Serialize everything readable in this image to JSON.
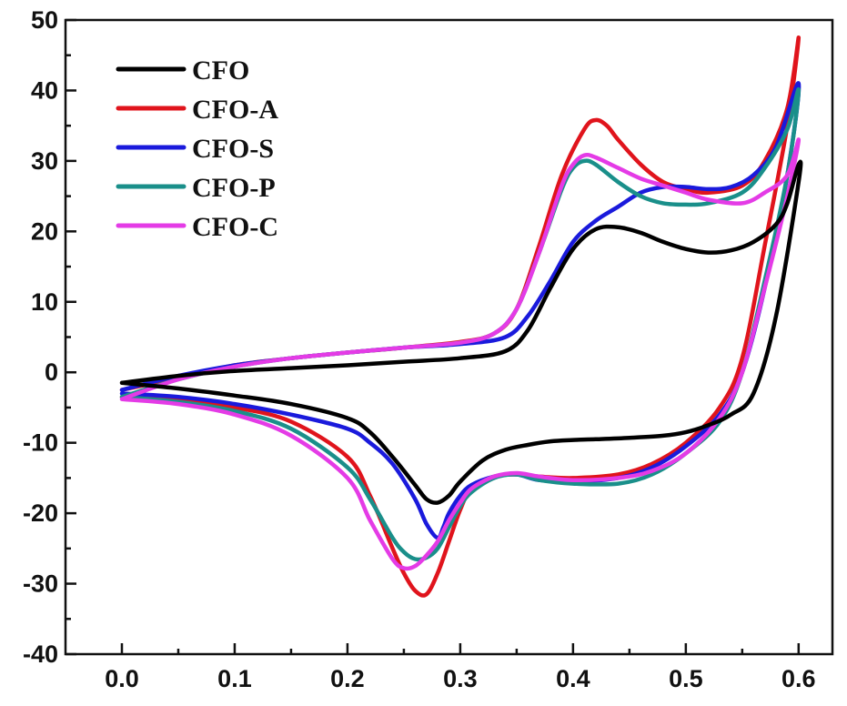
{
  "chart_data": {
    "type": "line",
    "title": "",
    "xlabel": "",
    "ylabel": "",
    "xlim": [
      -0.05,
      0.63
    ],
    "ylim": [
      -40,
      50
    ],
    "xticks": [
      0.0,
      0.1,
      0.2,
      0.3,
      0.4,
      0.5,
      0.6
    ],
    "xtick_labels": [
      "0.0",
      "0.1",
      "0.2",
      "0.3",
      "0.4",
      "0.5",
      "0.6"
    ],
    "yticks": [
      -40,
      -30,
      -20,
      -10,
      0,
      10,
      20,
      30,
      40,
      50
    ],
    "ytick_labels": [
      "-40",
      "-30",
      "-20",
      "-10",
      "0",
      "10",
      "20",
      "30",
      "40",
      "50"
    ],
    "grid": false,
    "legend_position": "top-left",
    "series": [
      {
        "name": "CFO",
        "color": "#000000",
        "x": [
          0.0,
          0.05,
          0.1,
          0.15,
          0.2,
          0.25,
          0.3,
          0.34,
          0.36,
          0.38,
          0.4,
          0.42,
          0.44,
          0.46,
          0.48,
          0.5,
          0.52,
          0.54,
          0.56,
          0.58,
          0.59,
          0.6,
          0.6,
          0.58,
          0.56,
          0.54,
          0.52,
          0.5,
          0.48,
          0.45,
          0.42,
          0.4,
          0.38,
          0.36,
          0.34,
          0.32,
          0.3,
          0.29,
          0.28,
          0.27,
          0.26,
          0.24,
          0.22,
          0.2,
          0.15,
          0.1,
          0.05,
          0.0
        ],
        "y": [
          -1.5,
          -0.5,
          0.2,
          0.6,
          1.0,
          1.5,
          2.0,
          3.0,
          6.0,
          12.0,
          17.5,
          20.3,
          20.6,
          19.8,
          18.5,
          17.5,
          17.0,
          17.3,
          18.5,
          21.0,
          24.0,
          29.5,
          27.0,
          8.0,
          -3.0,
          -6.0,
          -7.5,
          -8.5,
          -9.0,
          -9.3,
          -9.5,
          -9.6,
          -9.8,
          -10.3,
          -11.0,
          -12.5,
          -15.5,
          -17.5,
          -18.5,
          -18.0,
          -16.0,
          -12.0,
          -8.5,
          -6.5,
          -4.5,
          -3.3,
          -2.3,
          -1.5
        ]
      },
      {
        "name": "CFO-A",
        "color": "#e0141c",
        "x": [
          0.0,
          0.05,
          0.1,
          0.15,
          0.2,
          0.25,
          0.3,
          0.33,
          0.35,
          0.37,
          0.39,
          0.41,
          0.42,
          0.43,
          0.44,
          0.46,
          0.48,
          0.5,
          0.52,
          0.55,
          0.57,
          0.59,
          0.6,
          0.59,
          0.57,
          0.55,
          0.53,
          0.5,
          0.47,
          0.44,
          0.4,
          0.37,
          0.35,
          0.33,
          0.31,
          0.3,
          0.29,
          0.28,
          0.27,
          0.26,
          0.25,
          0.24,
          0.22,
          0.2,
          0.15,
          0.1,
          0.05,
          0.0
        ],
        "y": [
          -2.5,
          -0.8,
          1.0,
          2.0,
          2.8,
          3.5,
          4.3,
          5.5,
          9.0,
          18.0,
          28.0,
          34.5,
          35.8,
          35.0,
          33.0,
          29.5,
          27.0,
          26.0,
          25.5,
          26.5,
          30.0,
          37.5,
          47.5,
          35.0,
          18.0,
          2.0,
          -5.0,
          -10.0,
          -13.0,
          -14.5,
          -15.0,
          -14.8,
          -14.5,
          -14.8,
          -16.5,
          -19.5,
          -24.0,
          -28.5,
          -31.5,
          -31.0,
          -28.5,
          -25.0,
          -17.5,
          -12.0,
          -7.0,
          -5.0,
          -4.0,
          -3.5
        ]
      },
      {
        "name": "CFO-S",
        "color": "#1a1adc",
        "x": [
          0.0,
          0.05,
          0.1,
          0.15,
          0.2,
          0.25,
          0.3,
          0.34,
          0.36,
          0.38,
          0.4,
          0.42,
          0.44,
          0.46,
          0.48,
          0.5,
          0.52,
          0.54,
          0.56,
          0.58,
          0.6,
          0.59,
          0.57,
          0.55,
          0.53,
          0.5,
          0.47,
          0.44,
          0.4,
          0.37,
          0.35,
          0.33,
          0.31,
          0.3,
          0.29,
          0.285,
          0.28,
          0.27,
          0.26,
          0.24,
          0.22,
          0.2,
          0.15,
          0.1,
          0.05,
          0.0
        ],
        "y": [
          -2.5,
          -0.5,
          1.0,
          2.0,
          2.8,
          3.5,
          4.0,
          5.0,
          8.0,
          13.0,
          18.5,
          21.5,
          23.5,
          25.5,
          26.3,
          26.3,
          26.0,
          26.3,
          28.0,
          32.0,
          41.0,
          28.0,
          12.0,
          0.0,
          -6.0,
          -10.5,
          -13.5,
          -15.0,
          -15.5,
          -15.3,
          -14.5,
          -14.8,
          -16.0,
          -17.5,
          -20.0,
          -22.0,
          -23.5,
          -21.5,
          -18.0,
          -13.0,
          -10.0,
          -8.0,
          -6.0,
          -4.5,
          -3.5,
          -3.0
        ]
      },
      {
        "name": "CFO-P",
        "color": "#1a8f8a",
        "x": [
          0.0,
          0.05,
          0.1,
          0.15,
          0.2,
          0.25,
          0.3,
          0.33,
          0.35,
          0.37,
          0.39,
          0.4,
          0.41,
          0.42,
          0.44,
          0.46,
          0.48,
          0.5,
          0.52,
          0.55,
          0.57,
          0.59,
          0.6,
          0.59,
          0.57,
          0.55,
          0.53,
          0.5,
          0.47,
          0.44,
          0.4,
          0.37,
          0.35,
          0.33,
          0.31,
          0.3,
          0.29,
          0.28,
          0.27,
          0.26,
          0.25,
          0.24,
          0.22,
          0.2,
          0.15,
          0.1,
          0.05,
          0.0
        ],
        "y": [
          -3.5,
          -1.0,
          0.8,
          2.0,
          2.8,
          3.5,
          4.2,
          5.5,
          9.0,
          17.0,
          26.0,
          29.0,
          30.0,
          29.5,
          27.0,
          25.0,
          24.0,
          23.8,
          24.0,
          25.5,
          29.0,
          34.5,
          40.0,
          28.0,
          13.0,
          0.0,
          -7.0,
          -11.5,
          -14.5,
          -15.8,
          -15.8,
          -15.3,
          -14.5,
          -15.0,
          -17.0,
          -19.0,
          -22.0,
          -25.0,
          -26.3,
          -26.5,
          -25.5,
          -23.5,
          -18.0,
          -13.5,
          -8.0,
          -5.5,
          -4.2,
          -3.5
        ]
      },
      {
        "name": "CFO-C",
        "color": "#e43be6",
        "x": [
          0.0,
          0.05,
          0.1,
          0.15,
          0.2,
          0.25,
          0.3,
          0.33,
          0.35,
          0.37,
          0.39,
          0.4,
          0.41,
          0.42,
          0.44,
          0.46,
          0.48,
          0.5,
          0.52,
          0.55,
          0.57,
          0.59,
          0.6,
          0.59,
          0.57,
          0.55,
          0.53,
          0.5,
          0.47,
          0.44,
          0.4,
          0.37,
          0.35,
          0.33,
          0.31,
          0.3,
          0.29,
          0.28,
          0.27,
          0.26,
          0.25,
          0.24,
          0.22,
          0.2,
          0.15,
          0.1,
          0.05,
          0.0
        ],
        "y": [
          -3.8,
          -1.0,
          0.8,
          2.0,
          2.8,
          3.5,
          4.2,
          5.5,
          9.0,
          17.0,
          26.5,
          29.5,
          30.8,
          30.5,
          29.0,
          27.5,
          26.5,
          25.5,
          24.5,
          24.0,
          25.5,
          28.0,
          33.0,
          25.0,
          12.0,
          0.0,
          -6.5,
          -11.5,
          -14.0,
          -15.0,
          -15.3,
          -14.8,
          -14.3,
          -14.8,
          -16.5,
          -18.5,
          -21.0,
          -24.0,
          -26.0,
          -27.5,
          -27.8,
          -26.5,
          -21.0,
          -15.0,
          -9.0,
          -6.0,
          -4.5,
          -3.8
        ]
      }
    ]
  }
}
